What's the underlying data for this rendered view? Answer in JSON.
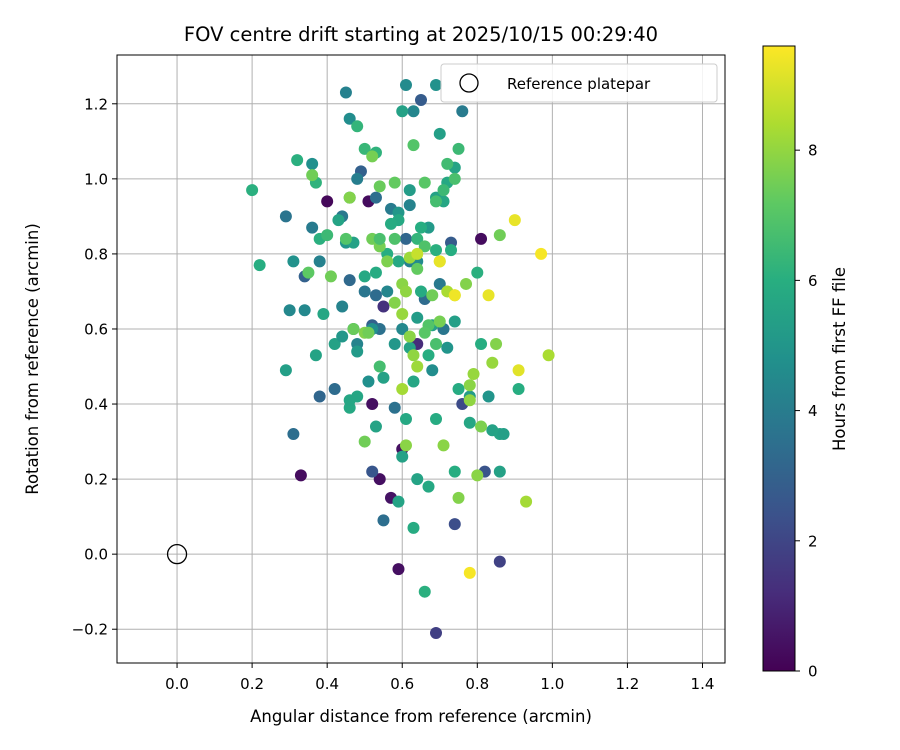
{
  "chart_data": {
    "type": "scatter",
    "title": "FOV centre drift starting at 2025/10/15 00:29:40",
    "xlabel": "Angular distance from reference (arcmin)",
    "ylabel": "Rotation from reference (arcmin)",
    "xlim": [
      -0.16,
      1.46
    ],
    "ylim": [
      -0.29,
      1.33
    ],
    "xticks": [
      0.0,
      0.2,
      0.4,
      0.6,
      0.8,
      1.0,
      1.2,
      1.4
    ],
    "yticks": [
      -0.2,
      0.0,
      0.2,
      0.4,
      0.6,
      0.8,
      1.0,
      1.2
    ],
    "xtick_labels": [
      "0.0",
      "0.2",
      "0.4",
      "0.6",
      "0.8",
      "1.0",
      "1.2",
      "1.4"
    ],
    "ytick_labels": [
      "−0.2",
      "0.0",
      "0.2",
      "0.4",
      "0.6",
      "0.8",
      "1.0",
      "1.2"
    ],
    "grid": true,
    "legend": {
      "position": "top-right",
      "entries": [
        "Reference platepar"
      ]
    },
    "reference_point": {
      "name": "Reference platepar",
      "x": 0.0,
      "y": 0.0,
      "marker": "open-circle"
    },
    "colorbar": {
      "label": "Hours from first FF file",
      "min": 0,
      "max": 9.6,
      "ticks": [
        0,
        2,
        4,
        6,
        8
      ],
      "tick_labels": [
        "0",
        "2",
        "4",
        "6",
        "8"
      ],
      "colormap": "viridis"
    },
    "series": [
      {
        "name": "FOV centre positions",
        "points": [
          [
            0.4,
            0.94,
            0.2
          ],
          [
            0.33,
            0.21,
            0.3
          ],
          [
            0.59,
            -0.04,
            0.4
          ],
          [
            0.81,
            0.84,
            0.3
          ],
          [
            0.51,
            0.94,
            0.3
          ],
          [
            0.52,
            0.4,
            0.4
          ],
          [
            0.54,
            0.2,
            0.4
          ],
          [
            0.57,
            0.15,
            0.5
          ],
          [
            0.6,
            0.28,
            0.4
          ],
          [
            0.69,
            -0.21,
            1.8
          ],
          [
            0.86,
            -0.02,
            1.9
          ],
          [
            0.64,
            0.56,
            1.2
          ],
          [
            0.55,
            0.66,
            1.4
          ],
          [
            0.76,
            0.4,
            2.2
          ],
          [
            0.74,
            0.08,
            2.3
          ],
          [
            0.52,
            0.22,
            2.6
          ],
          [
            0.65,
            1.21,
            2.8
          ],
          [
            0.73,
            0.83,
            2.8
          ],
          [
            0.82,
            0.22,
            2.5
          ],
          [
            0.38,
            0.42,
            3.2
          ],
          [
            0.31,
            0.32,
            3.5
          ],
          [
            0.55,
            0.09,
            3.5
          ],
          [
            0.34,
            0.74,
            3.0
          ],
          [
            0.29,
            0.9,
            3.7
          ],
          [
            0.42,
            0.44,
            3.4
          ],
          [
            0.52,
            0.61,
            3.0
          ],
          [
            0.49,
            1.02,
            3.0
          ],
          [
            0.53,
            0.95,
            3.5
          ],
          [
            0.46,
            0.73,
            3.3
          ],
          [
            0.58,
            0.39,
            3.6
          ],
          [
            0.61,
            0.84,
            3.2
          ],
          [
            0.66,
            0.68,
            3.4
          ],
          [
            0.71,
            0.6,
            3.8
          ],
          [
            0.36,
            0.87,
            4.0
          ],
          [
            0.44,
            0.9,
            3.9
          ],
          [
            0.48,
            1.0,
            4.1
          ],
          [
            0.57,
            0.92,
            4.0
          ],
          [
            0.62,
            0.78,
            4.2
          ],
          [
            0.7,
            0.72,
            3.9
          ],
          [
            0.48,
            0.56,
            4.3
          ],
          [
            0.56,
            0.7,
            4.4
          ],
          [
            0.6,
            0.6,
            4.5
          ],
          [
            0.64,
            0.78,
            4.6
          ],
          [
            0.68,
            0.49,
            4.7
          ],
          [
            0.51,
            0.46,
            4.8
          ],
          [
            0.45,
            1.23,
            4.2
          ],
          [
            0.61,
            1.25,
            4.6
          ],
          [
            0.69,
            1.25,
            4.9
          ],
          [
            0.76,
            1.18,
            4.0
          ],
          [
            0.63,
            1.18,
            4.4
          ],
          [
            0.46,
            1.16,
            4.7
          ],
          [
            0.38,
            0.78,
            4.2
          ],
          [
            0.44,
            0.66,
            4.3
          ],
          [
            0.36,
            1.04,
            4.8
          ],
          [
            0.3,
            0.65,
            4.5
          ],
          [
            0.34,
            0.65,
            4.5
          ],
          [
            0.31,
            0.78,
            4.9
          ],
          [
            0.5,
            0.7,
            3.8
          ],
          [
            0.54,
            0.6,
            3.6
          ],
          [
            0.53,
            0.69,
            3.4
          ],
          [
            0.62,
            0.93,
            4.3
          ],
          [
            0.45,
            0.83,
            5.0
          ],
          [
            0.59,
            0.91,
            5.1
          ],
          [
            0.67,
            0.87,
            5.2
          ],
          [
            0.72,
            0.55,
            5.0
          ],
          [
            0.78,
            0.42,
            5.3
          ],
          [
            0.83,
            0.42,
            5.0
          ],
          [
            0.84,
            0.33,
            5.5
          ],
          [
            0.86,
            0.32,
            5.6
          ],
          [
            0.87,
            0.32,
            5.4
          ],
          [
            0.86,
            0.22,
            5.5
          ],
          [
            0.78,
            0.35,
            5.7
          ],
          [
            0.74,
            0.62,
            5.4
          ],
          [
            0.69,
            0.95,
            5.5
          ],
          [
            0.64,
            0.2,
            5.6
          ],
          [
            0.67,
            0.18,
            5.8
          ],
          [
            0.63,
            0.07,
            5.9
          ],
          [
            0.59,
            0.14,
            5.6
          ],
          [
            0.6,
            0.26,
            5.5
          ],
          [
            0.53,
            0.34,
            5.6
          ],
          [
            0.48,
            0.42,
            5.7
          ],
          [
            0.46,
            0.39,
            5.8
          ],
          [
            0.46,
            0.41,
            5.7
          ],
          [
            0.42,
            0.56,
            5.5
          ],
          [
            0.37,
            0.53,
            5.6
          ],
          [
            0.29,
            0.49,
            5.4
          ],
          [
            0.39,
            0.64,
            5.7
          ],
          [
            0.43,
            0.89,
            5.6
          ],
          [
            0.47,
            0.83,
            5.5
          ],
          [
            0.46,
            0.95,
            5.9
          ],
          [
            0.5,
            0.74,
            5.8
          ],
          [
            0.53,
            0.75,
            5.9
          ],
          [
            0.56,
            0.8,
            6.0
          ],
          [
            0.59,
            0.78,
            5.8
          ],
          [
            0.65,
            0.7,
            5.9
          ],
          [
            0.67,
            0.53,
            6.0
          ],
          [
            0.63,
            0.46,
            5.7
          ],
          [
            0.61,
            0.36,
            5.8
          ],
          [
            0.69,
            0.36,
            5.9
          ],
          [
            0.74,
            0.22,
            6.0
          ],
          [
            0.66,
            -0.1,
            6.1
          ],
          [
            0.48,
            0.54,
            5.2
          ],
          [
            0.55,
            0.47,
            5.5
          ],
          [
            0.52,
            0.6,
            4.8
          ],
          [
            0.58,
            0.56,
            5.1
          ],
          [
            0.62,
            0.55,
            5.6
          ],
          [
            0.64,
            0.63,
            5.3
          ],
          [
            0.68,
            0.61,
            5.5
          ],
          [
            0.47,
            0.6,
            5.0
          ],
          [
            0.44,
            0.58,
            5.1
          ],
          [
            0.7,
            1.12,
            5.4
          ],
          [
            0.74,
            1.03,
            5.6
          ],
          [
            0.72,
            0.99,
            5.8
          ],
          [
            0.71,
            0.94,
            5.7
          ],
          [
            0.62,
            0.97,
            5.3
          ],
          [
            0.59,
            0.89,
            5.8
          ],
          [
            0.57,
            0.88,
            5.9
          ],
          [
            0.65,
            0.87,
            6.0
          ],
          [
            0.69,
            0.81,
            6.1
          ],
          [
            0.64,
            0.84,
            6.3
          ],
          [
            0.73,
            0.81,
            6.0
          ],
          [
            0.8,
            0.75,
            6.1
          ],
          [
            0.81,
            0.56,
            6.0
          ],
          [
            0.75,
            0.44,
            5.9
          ],
          [
            0.91,
            0.44,
            6.0
          ],
          [
            0.2,
            0.97,
            6.1
          ],
          [
            0.22,
            0.77,
            6.0
          ],
          [
            0.32,
            1.05,
            6.1
          ],
          [
            0.38,
            0.84,
            6.1
          ],
          [
            0.37,
            0.99,
            6.2
          ],
          [
            0.4,
            0.85,
            6.5
          ],
          [
            0.48,
            1.14,
            6.3
          ],
          [
            0.5,
            1.08,
            6.4
          ],
          [
            0.53,
            1.07,
            6.2
          ],
          [
            0.6,
            1.18,
            5.5
          ],
          [
            0.75,
            1.08,
            6.5
          ],
          [
            0.72,
            1.04,
            6.6
          ],
          [
            0.69,
            0.94,
            6.7
          ],
          [
            0.71,
            0.97,
            6.5
          ],
          [
            0.74,
            1.0,
            6.8
          ],
          [
            0.63,
            1.09,
            7.0
          ],
          [
            0.66,
            0.99,
            7.1
          ],
          [
            0.58,
            0.99,
            7.3
          ],
          [
            0.54,
            0.98,
            7.4
          ],
          [
            0.52,
            1.06,
            7.6
          ],
          [
            0.46,
            0.95,
            7.8
          ],
          [
            0.36,
            1.01,
            7.5
          ],
          [
            0.35,
            0.75,
            7.2
          ],
          [
            0.41,
            0.74,
            7.5
          ],
          [
            0.45,
            0.84,
            7.0
          ],
          [
            0.47,
            0.6,
            7.4
          ],
          [
            0.5,
            0.59,
            7.8
          ],
          [
            0.51,
            0.59,
            7.5
          ],
          [
            0.52,
            0.84,
            7.5
          ],
          [
            0.54,
            0.82,
            7.6
          ],
          [
            0.56,
            0.78,
            7.7
          ],
          [
            0.58,
            0.84,
            6.9
          ],
          [
            0.6,
            0.72,
            7.9
          ],
          [
            0.61,
            0.7,
            8.0
          ],
          [
            0.58,
            0.67,
            7.8
          ],
          [
            0.6,
            0.64,
            8.1
          ],
          [
            0.62,
            0.58,
            7.9
          ],
          [
            0.63,
            0.53,
            8.0
          ],
          [
            0.64,
            0.5,
            8.2
          ],
          [
            0.6,
            0.44,
            8.3
          ],
          [
            0.61,
            0.29,
            7.9
          ],
          [
            0.5,
            0.3,
            7.5
          ],
          [
            0.54,
            0.5,
            6.7
          ],
          [
            0.54,
            0.84,
            6.8
          ],
          [
            0.64,
            0.76,
            7.3
          ],
          [
            0.66,
            0.82,
            6.9
          ],
          [
            0.68,
            0.69,
            7.5
          ],
          [
            0.67,
            0.61,
            7.0
          ],
          [
            0.66,
            0.59,
            7.1
          ],
          [
            0.69,
            0.56,
            6.8
          ],
          [
            0.7,
            0.62,
            7.6
          ],
          [
            0.7,
            0.78,
            8.5
          ],
          [
            0.72,
            0.7,
            8.4
          ],
          [
            0.74,
            0.69,
            8.3
          ],
          [
            0.77,
            0.72,
            7.8
          ],
          [
            0.78,
            0.45,
            7.9
          ],
          [
            0.79,
            0.48,
            8.1
          ],
          [
            0.78,
            0.41,
            8.0
          ],
          [
            0.81,
            0.34,
            7.7
          ],
          [
            0.8,
            0.21,
            7.9
          ],
          [
            0.75,
            0.15,
            7.8
          ],
          [
            0.71,
            0.29,
            7.9
          ],
          [
            0.85,
            0.56,
            7.8
          ],
          [
            0.84,
            0.51,
            8.1
          ],
          [
            0.86,
            0.85,
            7.5
          ],
          [
            0.93,
            0.14,
            8.3
          ],
          [
            0.99,
            0.53,
            8.4
          ],
          [
            0.62,
            0.79,
            8.2
          ],
          [
            0.64,
            0.8,
            8.8
          ],
          [
            0.7,
            0.78,
            9.3
          ],
          [
            0.74,
            0.69,
            9.4
          ],
          [
            0.83,
            0.69,
            9.3
          ],
          [
            0.91,
            0.49,
            9.2
          ],
          [
            0.9,
            0.89,
            9.3
          ],
          [
            0.97,
            0.8,
            9.5
          ],
          [
            0.78,
            -0.05,
            9.5
          ]
        ]
      }
    ]
  }
}
